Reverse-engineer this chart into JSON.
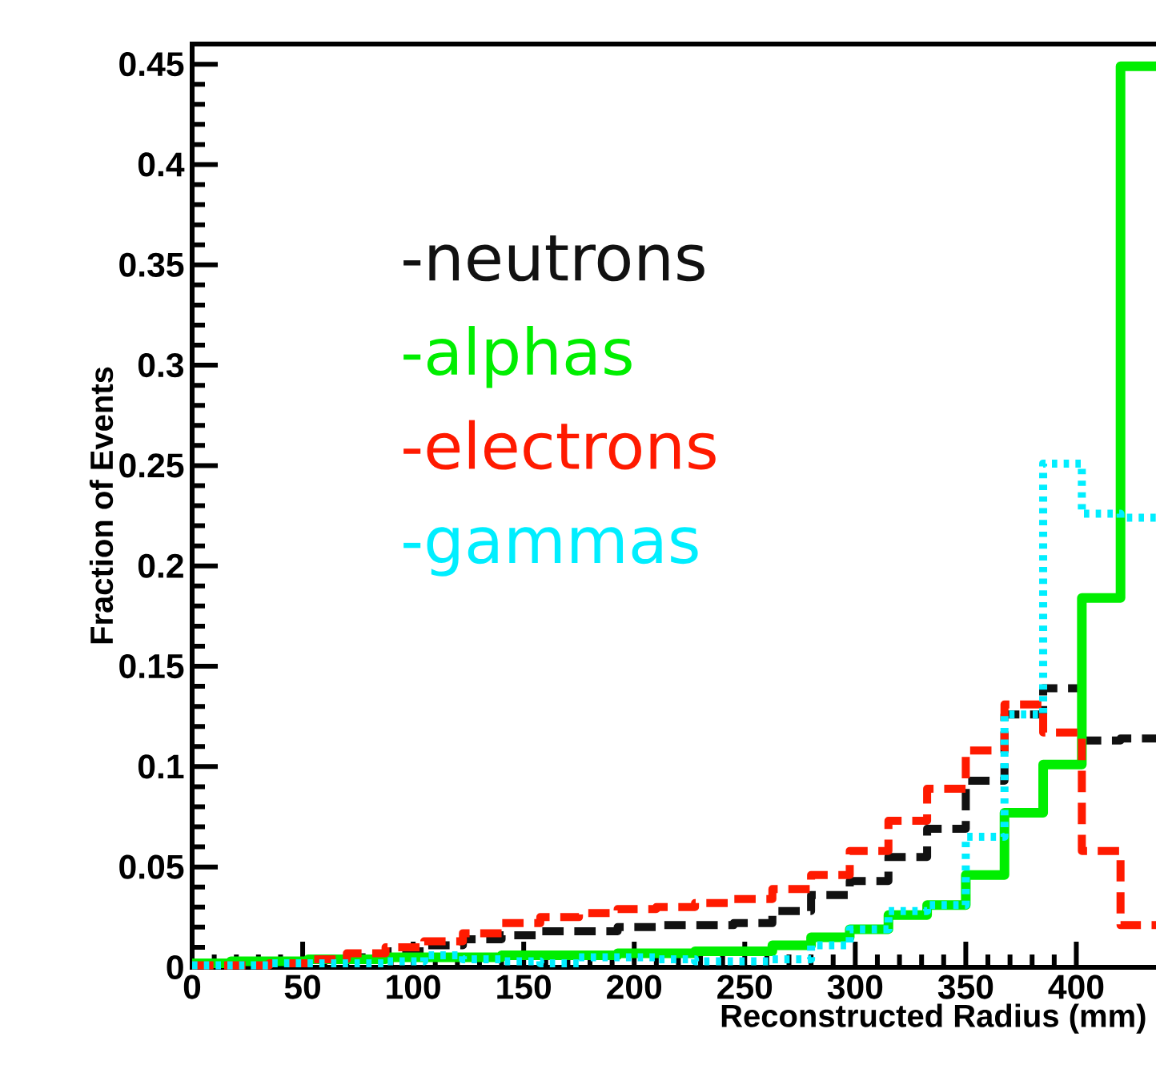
{
  "chart_data": {
    "type": "histogram",
    "xlabel": "Reconstructed Radius (mm)",
    "ylabel": "Fraction of Events",
    "bins": [
      0,
      17.5,
      35,
      52.5,
      70,
      87.5,
      105,
      122.5,
      140,
      157.5,
      175,
      192.5,
      210,
      227.5,
      245,
      262.5,
      280,
      297.5,
      315,
      332.5,
      350,
      367.5,
      385,
      402.5,
      420,
      437.5
    ],
    "series": [
      {
        "name": "-neutrons",
        "color": "#111111",
        "line_style": "dashed",
        "values": [
          0.001,
          0.002,
          0.003,
          0.004,
          0.005,
          0.008,
          0.011,
          0.014,
          0.016,
          0.018,
          0.018,
          0.02,
          0.021,
          0.021,
          0.022,
          0.028,
          0.036,
          0.043,
          0.055,
          0.069,
          0.093,
          0.126,
          0.139,
          0.113,
          0.114
        ]
      },
      {
        "name": "-alphas",
        "color": "#00ee00",
        "line_style": "solid",
        "values": [
          0.002,
          0.003,
          0.003,
          0.004,
          0.004,
          0.005,
          0.005,
          0.005,
          0.006,
          0.006,
          0.006,
          0.007,
          0.007,
          0.008,
          0.008,
          0.011,
          0.015,
          0.019,
          0.026,
          0.031,
          0.046,
          0.077,
          0.101,
          0.184,
          0.449
        ]
      },
      {
        "name": "-electrons",
        "color": "#ff1a00",
        "line_style": "dashed",
        "values": [
          0.001,
          0.001,
          0.002,
          0.004,
          0.007,
          0.01,
          0.013,
          0.017,
          0.022,
          0.025,
          0.027,
          0.029,
          0.03,
          0.032,
          0.034,
          0.039,
          0.046,
          0.058,
          0.073,
          0.089,
          0.108,
          0.131,
          0.117,
          0.058,
          0.021
        ]
      },
      {
        "name": "-gammas",
        "color": "#00eeff",
        "line_style": "dotted",
        "values": [
          0.001,
          0.001,
          0.002,
          0.002,
          0.002,
          0.003,
          0.006,
          0.004,
          0.003,
          0.002,
          0.005,
          0.005,
          0.004,
          0.003,
          0.003,
          0.004,
          0.011,
          0.019,
          0.028,
          0.031,
          0.065,
          0.126,
          0.251,
          0.226,
          0.224
        ]
      }
    ],
    "xlim": [
      0,
      437.5
    ],
    "ylim": [
      0,
      0.46
    ],
    "xticks": [
      0,
      50,
      100,
      150,
      200,
      250,
      300,
      350,
      400
    ],
    "yticks": [
      0,
      0.05,
      0.1,
      0.15,
      0.2,
      0.25,
      0.3,
      0.35,
      0.4,
      0.45
    ],
    "legend": "top left",
    "grid": false
  }
}
